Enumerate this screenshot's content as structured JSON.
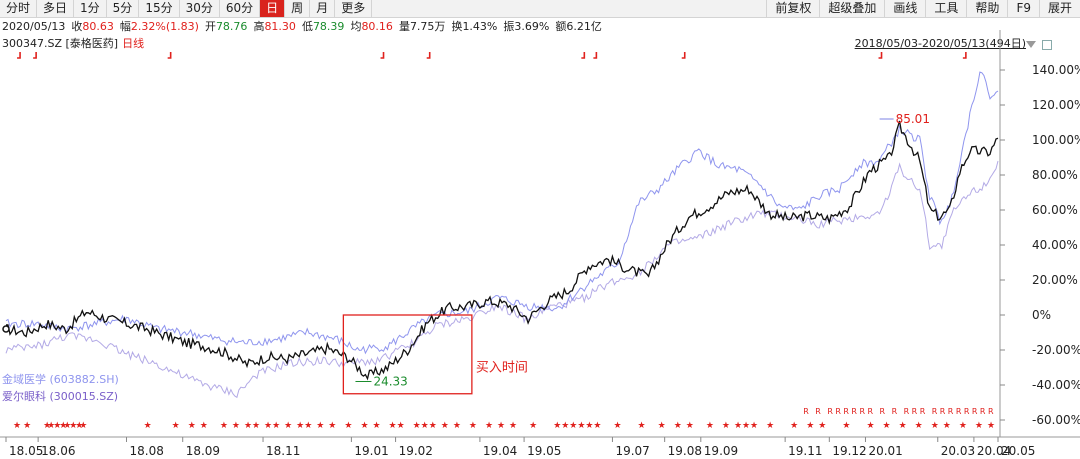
{
  "toolbar": {
    "left_tabs": [
      "分时",
      "多日",
      "1分",
      "5分",
      "15分",
      "30分",
      "60分",
      "日",
      "周",
      "月",
      "更多"
    ],
    "active_tab": "日",
    "right_buttons": [
      "前复权",
      "超级叠加",
      "画线",
      "工具",
      "帮助",
      "F9",
      "展开"
    ]
  },
  "quote": {
    "date": "2020/05/13",
    "close_label": "收",
    "close": "80.63",
    "change_label": "幅",
    "change": "2.32%(1.83)",
    "open_label": "开",
    "open": "78.76",
    "high_label": "高",
    "high": "81.30",
    "low_label": "低",
    "low": "78.39",
    "avg_label": "均",
    "avg": "80.16",
    "volume_label": "量",
    "volume": "7.75万",
    "turnover_label": "换",
    "turnover": "1.43%",
    "amplitude_label": "振",
    "amplitude": "3.69%",
    "amount_label": "额",
    "amount": "6.21亿"
  },
  "stock": {
    "code_name": "300347.SZ [泰格医药]",
    "indicator": "日线"
  },
  "range_label": "2018/05/03-2020/05/13(494日)",
  "legend": {
    "series1": "金域医学 (603882.SH)",
    "series2": "爱尔眼科 (300015.SZ)"
  },
  "colors": {
    "main": "#111111",
    "series1": "#8f95ee",
    "series2": "#b3aae6",
    "up": "#e0211d",
    "down": "#1b8c2d",
    "highlight_box": "#e0211d",
    "toolbar_active": "#d9231d"
  },
  "annotations": {
    "box_label": "买入时间",
    "low_marker": "24.33",
    "high_marker": "85.01"
  },
  "chart_data": {
    "type": "line",
    "y_unit": "%",
    "ylim": [
      -60,
      140
    ],
    "y_ticks": [
      "140.00%",
      "120.00%",
      "100.00%",
      "80.00%",
      "60.00%",
      "40.00%",
      "20.00%",
      "0%",
      "-20.00%",
      "-40.00%",
      "-60.00%"
    ],
    "y_tick_values": [
      140,
      120,
      100,
      80,
      60,
      40,
      20,
      0,
      -20,
      -40,
      -60
    ],
    "x_ticks": [
      "18.05",
      "18.06",
      "18.08",
      "18.09",
      "18.11",
      "19.01",
      "19.02",
      "19.04",
      "19.05",
      "19.07",
      "19.08",
      "19.09",
      "19.11",
      "19.12",
      "20.01",
      "20.03",
      "20.04",
      "20.05"
    ],
    "x_tick_index": [
      0,
      16,
      60,
      88,
      128,
      172,
      194,
      236,
      258,
      302,
      328,
      346,
      388,
      410,
      428,
      464,
      482,
      494
    ],
    "x_count": 494,
    "series": [
      {
        "name": "300347.SZ [泰格医药]",
        "points": [
          [
            0,
            -8
          ],
          [
            10,
            -10
          ],
          [
            20,
            -5
          ],
          [
            30,
            -8
          ],
          [
            40,
            2
          ],
          [
            50,
            -2
          ],
          [
            60,
            -5
          ],
          [
            70,
            -8
          ],
          [
            80,
            -12
          ],
          [
            90,
            -16
          ],
          [
            100,
            -18
          ],
          [
            110,
            -22
          ],
          [
            120,
            -28
          ],
          [
            130,
            -24
          ],
          [
            140,
            -25
          ],
          [
            150,
            -22
          ],
          [
            160,
            -19
          ],
          [
            170,
            -24
          ],
          [
            180,
            -35
          ],
          [
            190,
            -30
          ],
          [
            200,
            -20
          ],
          [
            210,
            -4
          ],
          [
            220,
            4
          ],
          [
            230,
            5
          ],
          [
            240,
            8
          ],
          [
            250,
            6
          ],
          [
            260,
            -2
          ],
          [
            270,
            8
          ],
          [
            280,
            14
          ],
          [
            290,
            28
          ],
          [
            300,
            32
          ],
          [
            310,
            26
          ],
          [
            320,
            22
          ],
          [
            330,
            42
          ],
          [
            340,
            56
          ],
          [
            350,
            62
          ],
          [
            360,
            70
          ],
          [
            370,
            72
          ],
          [
            380,
            58
          ],
          [
            390,
            55
          ],
          [
            400,
            57
          ],
          [
            410,
            55
          ],
          [
            420,
            62
          ],
          [
            430,
            82
          ],
          [
            440,
            90
          ],
          [
            445,
            108
          ],
          [
            455,
            88
          ],
          [
            460,
            60
          ],
          [
            465,
            56
          ],
          [
            470,
            60
          ],
          [
            475,
            82
          ],
          [
            480,
            94
          ],
          [
            490,
            93
          ],
          [
            494,
            101
          ]
        ]
      },
      {
        "name": "金域医学 (603882.SH)",
        "points": [
          [
            0,
            -5
          ],
          [
            15,
            -5
          ],
          [
            30,
            -8
          ],
          [
            45,
            -5
          ],
          [
            60,
            -2
          ],
          [
            75,
            -8
          ],
          [
            90,
            -10
          ],
          [
            105,
            -14
          ],
          [
            120,
            -16
          ],
          [
            135,
            -14
          ],
          [
            150,
            -10
          ],
          [
            165,
            -14
          ],
          [
            175,
            -20
          ],
          [
            190,
            -18
          ],
          [
            205,
            -6
          ],
          [
            215,
            0
          ],
          [
            230,
            2
          ],
          [
            245,
            10
          ],
          [
            260,
            5
          ],
          [
            275,
            4
          ],
          [
            290,
            18
          ],
          [
            305,
            30
          ],
          [
            315,
            64
          ],
          [
            325,
            72
          ],
          [
            335,
            84
          ],
          [
            345,
            94
          ],
          [
            355,
            85
          ],
          [
            365,
            83
          ],
          [
            375,
            75
          ],
          [
            385,
            62
          ],
          [
            395,
            60
          ],
          [
            405,
            68
          ],
          [
            415,
            72
          ],
          [
            425,
            86
          ],
          [
            435,
            88
          ],
          [
            445,
            106
          ],
          [
            455,
            100
          ],
          [
            460,
            68
          ],
          [
            465,
            54
          ],
          [
            470,
            62
          ],
          [
            478,
            104
          ],
          [
            485,
            140
          ],
          [
            490,
            126
          ],
          [
            494,
            128
          ]
        ]
      },
      {
        "name": "爱尔眼科 (300015.SZ)",
        "points": [
          [
            0,
            -20
          ],
          [
            15,
            -18
          ],
          [
            30,
            -12
          ],
          [
            45,
            -14
          ],
          [
            60,
            -22
          ],
          [
            75,
            -28
          ],
          [
            90,
            -36
          ],
          [
            105,
            -42
          ],
          [
            115,
            -45
          ],
          [
            125,
            -34
          ],
          [
            140,
            -28
          ],
          [
            155,
            -26
          ],
          [
            170,
            -28
          ],
          [
            185,
            -26
          ],
          [
            200,
            -18
          ],
          [
            215,
            -6
          ],
          [
            230,
            -2
          ],
          [
            245,
            6
          ],
          [
            260,
            -3
          ],
          [
            270,
            4
          ],
          [
            285,
            8
          ],
          [
            300,
            18
          ],
          [
            315,
            24
          ],
          [
            330,
            40
          ],
          [
            345,
            44
          ],
          [
            360,
            52
          ],
          [
            375,
            58
          ],
          [
            390,
            56
          ],
          [
            405,
            52
          ],
          [
            420,
            55
          ],
          [
            435,
            58
          ],
          [
            445,
            84
          ],
          [
            455,
            72
          ],
          [
            460,
            40
          ],
          [
            466,
            40
          ],
          [
            472,
            60
          ],
          [
            480,
            70
          ],
          [
            488,
            75
          ],
          [
            494,
            88
          ]
        ]
      }
    ],
    "high_point": {
      "index": 445,
      "price": "85.01"
    },
    "low_point": {
      "index": 180,
      "price": "24.33"
    },
    "highlight_box": {
      "from_index": 168,
      "to_index": 232,
      "y_from": 0,
      "y_to": -45,
      "label": "买入时间"
    },
    "buy_marks_index": [
      7,
      15,
      82,
      188,
      211,
      288,
      294,
      338,
      436,
      478
    ],
    "star_marks_index": [
      5,
      10,
      20,
      22,
      25,
      28,
      30,
      33,
      36,
      38,
      70,
      84,
      92,
      98,
      108,
      114,
      120,
      124,
      130,
      134,
      140,
      146,
      150,
      156,
      162,
      170,
      178,
      184,
      192,
      196,
      204,
      208,
      212,
      218,
      224,
      232,
      240,
      246,
      252,
      262,
      274,
      278,
      282,
      286,
      290,
      294,
      304,
      316,
      326,
      334,
      340,
      350,
      358,
      364,
      368,
      372,
      380,
      392,
      400,
      406,
      418,
      430,
      438,
      446,
      454,
      462,
      468,
      476,
      484,
      490
    ],
    "r_marks_index": [
      398,
      404,
      410,
      414,
      418,
      422,
      426,
      430,
      436,
      442,
      448,
      452,
      456,
      462,
      466,
      470,
      474,
      478,
      482,
      486,
      490
    ]
  }
}
